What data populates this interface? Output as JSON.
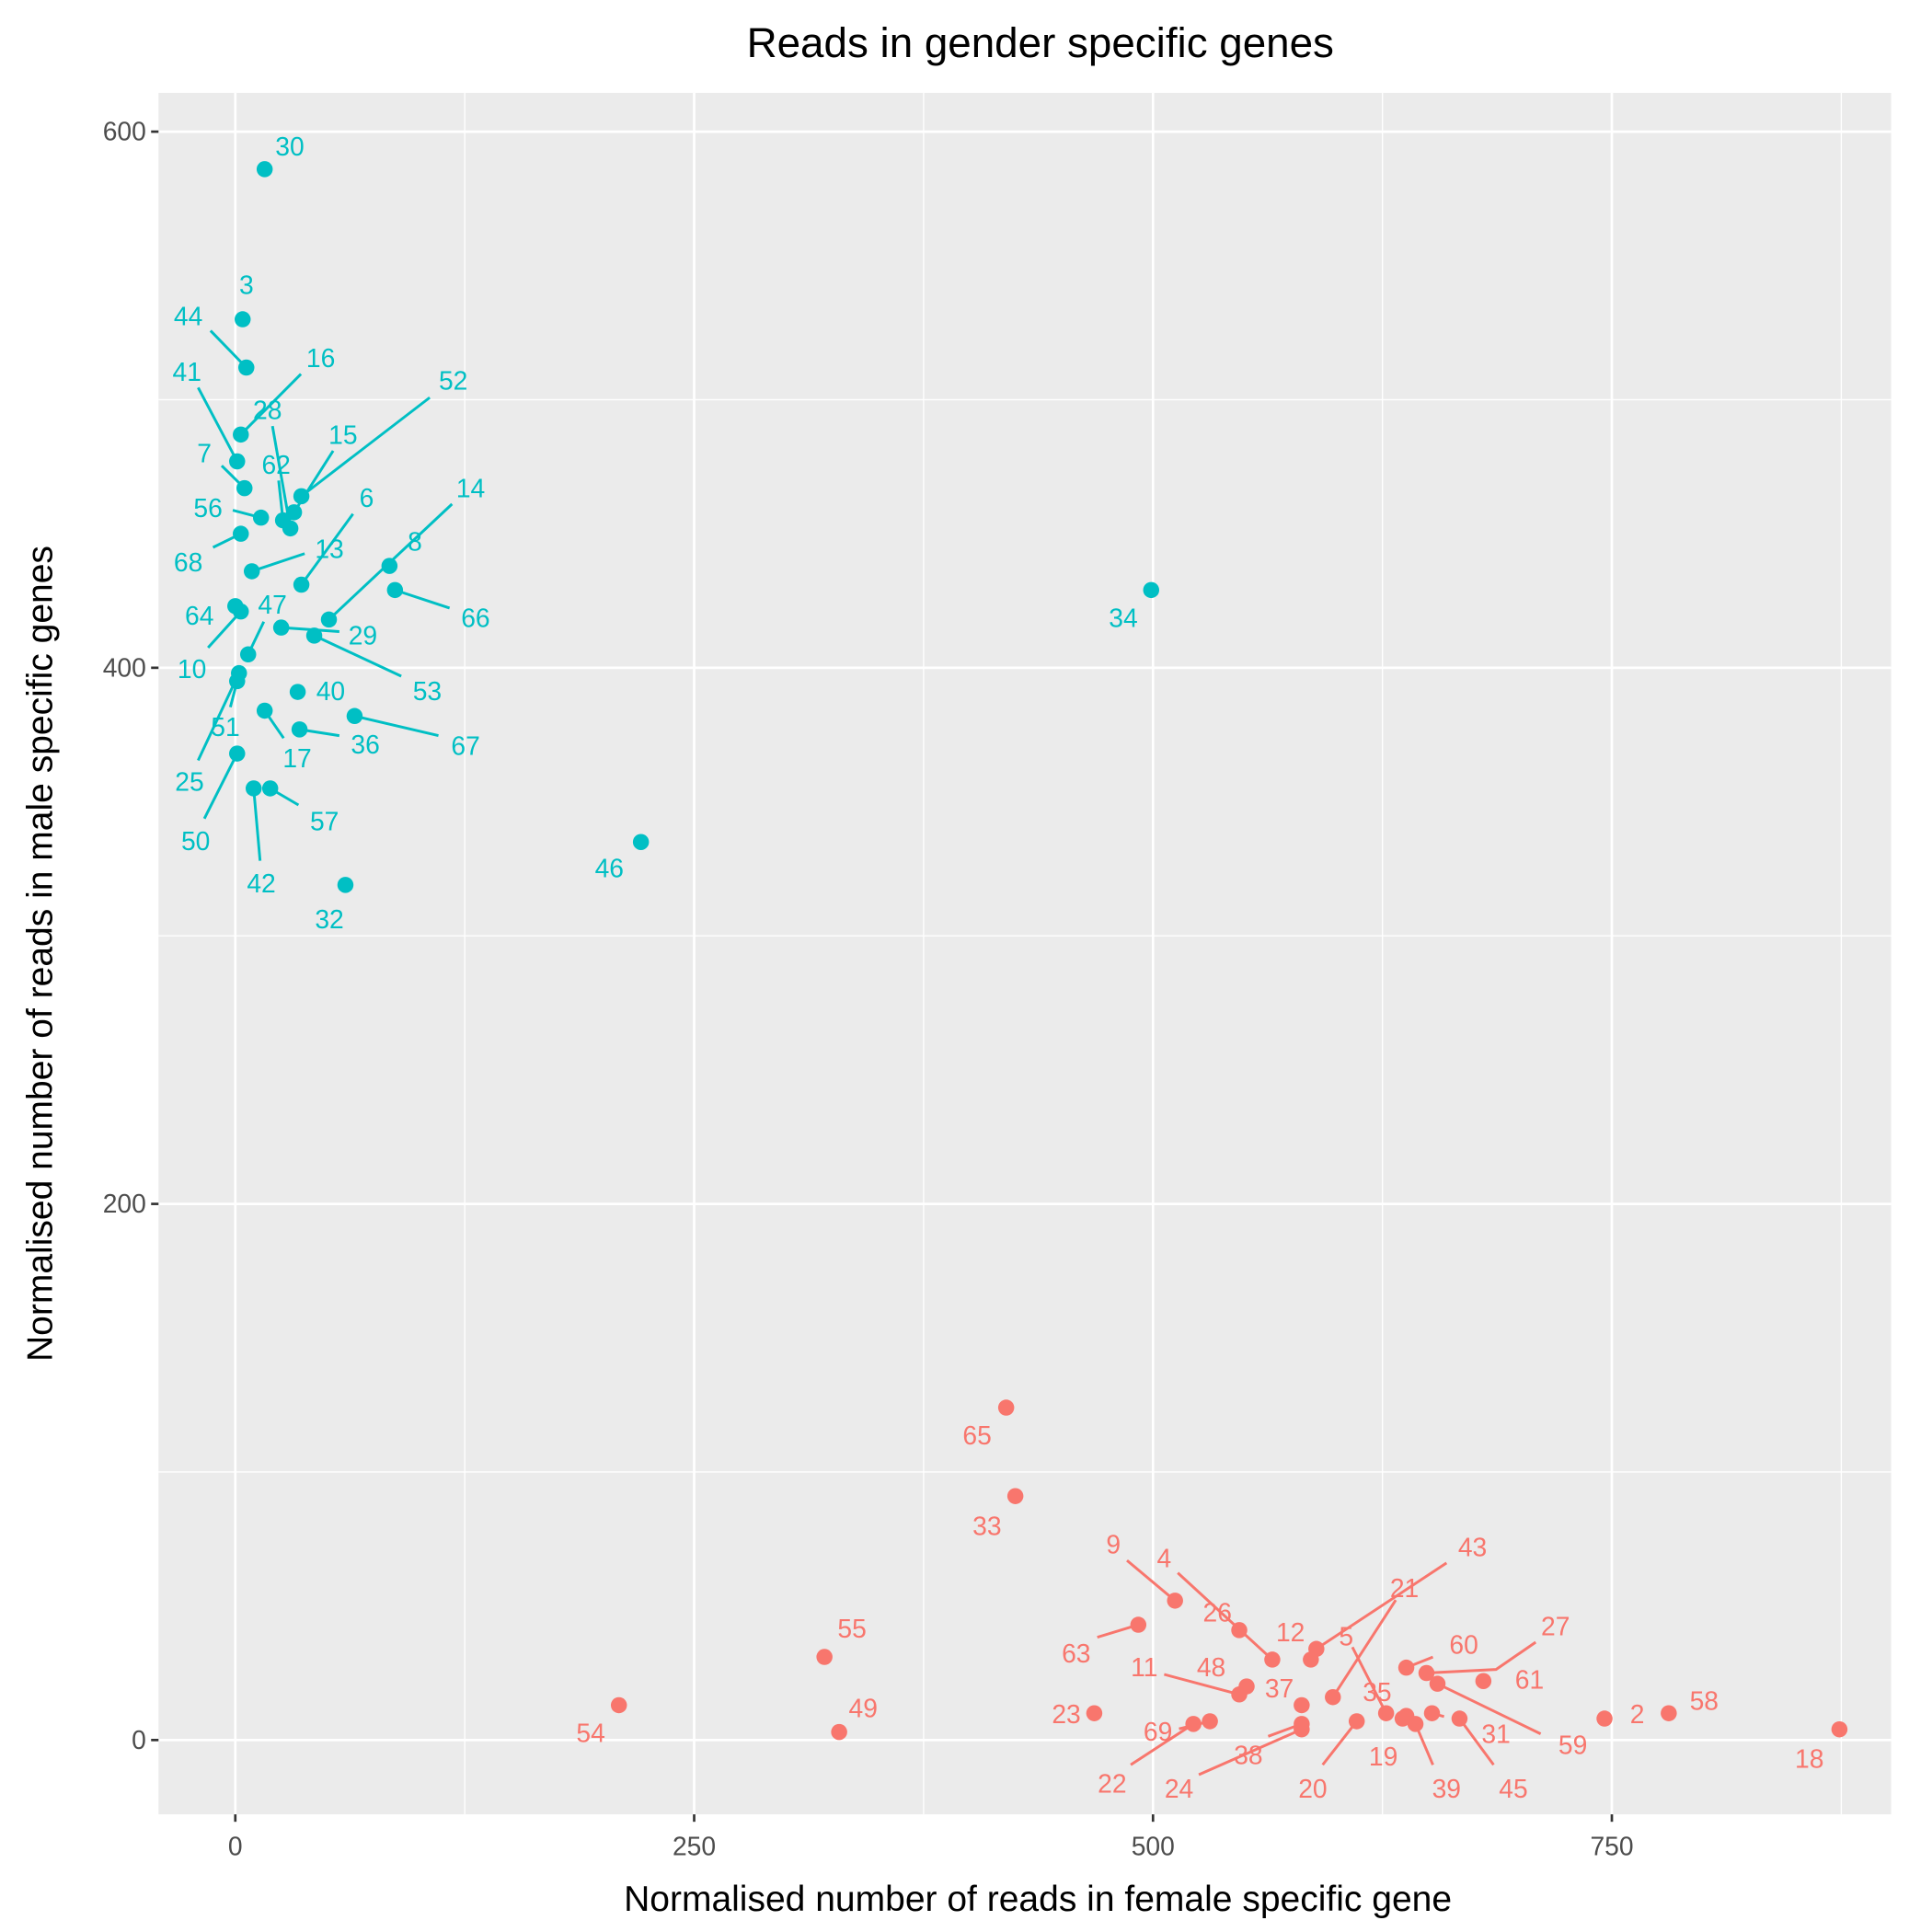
{
  "chart_data": {
    "type": "scatter",
    "title": "Reads in gender specific genes",
    "xlabel": "Normalised number of reads in female specific gene",
    "ylabel": "Normalised number of reads in male specific genes",
    "xlim": [
      -42,
      902
    ],
    "ylim": [
      -28,
      614
    ],
    "xticks": [
      "0",
      "250",
      "500",
      "750"
    ],
    "yticks": [
      "0",
      "200",
      "400",
      "600"
    ],
    "grid": true,
    "legend": "none",
    "series": [
      {
        "color": "#00BFC4",
        "points": [
          {
            "label": "30",
            "x": 16,
            "y": 586
          },
          {
            "label": "3",
            "x": 4,
            "y": 530
          },
          {
            "label": "44",
            "x": 6,
            "y": 512
          },
          {
            "label": "16",
            "x": 3,
            "y": 487
          },
          {
            "label": "41",
            "x": 1,
            "y": 477
          },
          {
            "label": "7",
            "x": 5,
            "y": 467
          },
          {
            "label": "28",
            "x": 30,
            "y": 452
          },
          {
            "label": "62",
            "x": 26,
            "y": 455
          },
          {
            "label": "15",
            "x": 32,
            "y": 458
          },
          {
            "label": "52",
            "x": 36,
            "y": 464
          },
          {
            "label": "56",
            "x": 14,
            "y": 456
          },
          {
            "label": "68",
            "x": 3,
            "y": 450
          },
          {
            "label": "6",
            "x": 36,
            "y": 431
          },
          {
            "label": "13",
            "x": 9,
            "y": 436
          },
          {
            "label": "14",
            "x": 51,
            "y": 418
          },
          {
            "label": "8",
            "x": 84,
            "y": 438
          },
          {
            "label": "66",
            "x": 87,
            "y": 429
          },
          {
            "label": "64",
            "x": 0,
            "y": 423
          },
          {
            "label": "10",
            "x": 3,
            "y": 421
          },
          {
            "label": "47",
            "x": 7,
            "y": 405
          },
          {
            "label": "29",
            "x": 25,
            "y": 415
          },
          {
            "label": "53",
            "x": 43,
            "y": 412
          },
          {
            "label": "25",
            "x": 2,
            "y": 398
          },
          {
            "label": "51",
            "x": 1,
            "y": 395
          },
          {
            "label": "40",
            "x": 34,
            "y": 391
          },
          {
            "label": "17",
            "x": 16,
            "y": 384
          },
          {
            "label": "36",
            "x": 35,
            "y": 377
          },
          {
            "label": "67",
            "x": 65,
            "y": 382
          },
          {
            "label": "50",
            "x": 1,
            "y": 368
          },
          {
            "label": "42",
            "x": 10,
            "y": 355
          },
          {
            "label": "57",
            "x": 19,
            "y": 355
          },
          {
            "label": "32",
            "x": 60,
            "y": 319
          },
          {
            "label": "46",
            "x": 221,
            "y": 335
          },
          {
            "label": "34",
            "x": 499,
            "y": 429
          }
        ]
      },
      {
        "color": "#F8766D",
        "points": [
          {
            "label": "65",
            "x": 420,
            "y": 124
          },
          {
            "label": "33",
            "x": 425,
            "y": 91
          },
          {
            "label": "55",
            "x": 321,
            "y": 31
          },
          {
            "label": "54",
            "x": 209,
            "y": 13
          },
          {
            "label": "49",
            "x": 329,
            "y": 3
          },
          {
            "label": "9",
            "x": 512,
            "y": 52
          },
          {
            "label": "4",
            "x": 565,
            "y": 30
          },
          {
            "label": "26",
            "x": 547,
            "y": 41
          },
          {
            "label": "12",
            "x": 586,
            "y": 30
          },
          {
            "label": "5",
            "x": 627,
            "y": 10
          },
          {
            "label": "43",
            "x": 589,
            "y": 34
          },
          {
            "label": "21",
            "x": 598,
            "y": 16
          },
          {
            "label": "63",
            "x": 492,
            "y": 43
          },
          {
            "label": "11",
            "x": 547,
            "y": 17
          },
          {
            "label": "48",
            "x": 551,
            "y": 20
          },
          {
            "label": "37",
            "x": 581,
            "y": 13
          },
          {
            "label": "38",
            "x": 581,
            "y": 6
          },
          {
            "label": "24",
            "x": 581,
            "y": 4
          },
          {
            "label": "23",
            "x": 468,
            "y": 10
          },
          {
            "label": "69",
            "x": 531,
            "y": 7
          },
          {
            "label": "22",
            "x": 522,
            "y": 6
          },
          {
            "label": "20",
            "x": 611,
            "y": 7
          },
          {
            "label": "35",
            "x": 638,
            "y": 9
          },
          {
            "label": "19",
            "x": 636,
            "y": 8
          },
          {
            "label": "39",
            "x": 643,
            "y": 6
          },
          {
            "label": "31",
            "x": 652,
            "y": 10
          },
          {
            "label": "45",
            "x": 667,
            "y": 8
          },
          {
            "label": "60",
            "x": 638,
            "y": 27
          },
          {
            "label": "27",
            "x": 649,
            "y": 25
          },
          {
            "label": "61",
            "x": 680,
            "y": 22
          },
          {
            "label": "59",
            "x": 655,
            "y": 21
          },
          {
            "label": "2",
            "x": 746,
            "y": 8
          },
          {
            "label": "58",
            "x": 781,
            "y": 10
          },
          {
            "label": "18",
            "x": 874,
            "y": 4
          }
        ]
      }
    ]
  }
}
